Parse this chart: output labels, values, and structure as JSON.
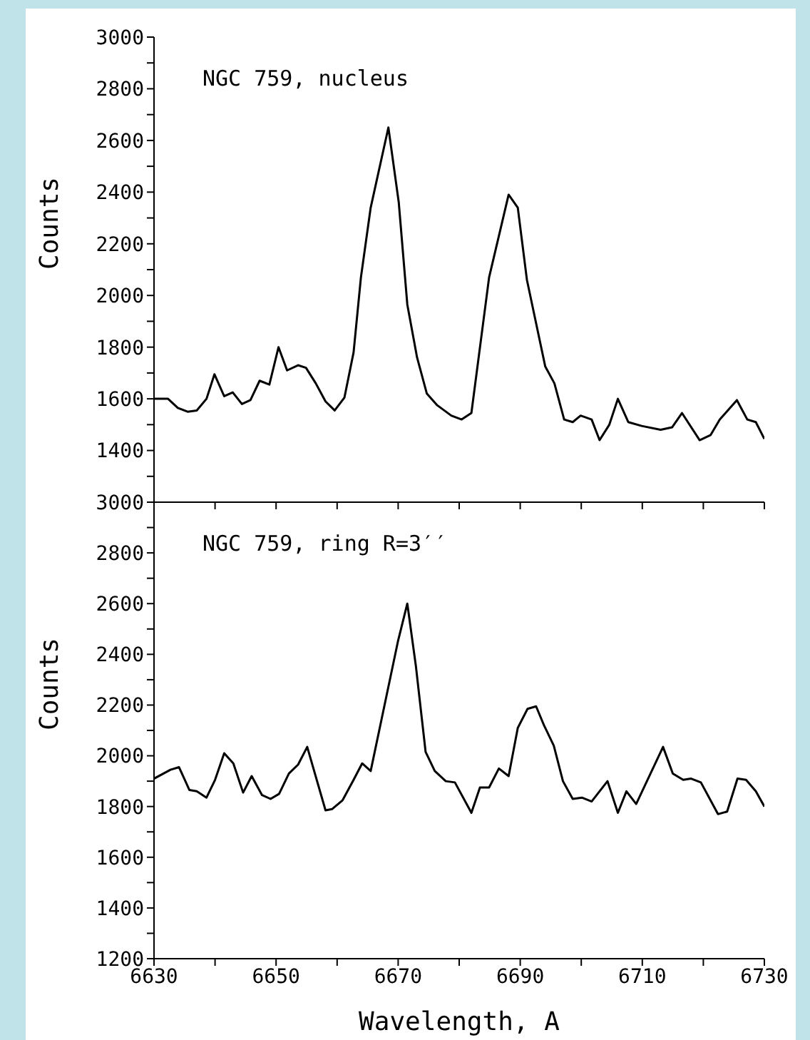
{
  "chart_data": [
    {
      "type": "line",
      "annotations": [
        "NGC 759, nucleus"
      ],
      "ylabel": "Counts",
      "xlim": [
        6630,
        6730
      ],
      "xticks": [
        6630,
        {
          "value": 6640,
          "label": null
        },
        6650,
        {
          "value": 6660,
          "label": null
        },
        6670,
        {
          "value": 6680,
          "label": null
        },
        6690,
        {
          "value": 6700,
          "label": null
        },
        6710,
        {
          "value": 6720,
          "label": null
        },
        6730
      ],
      "ylim": [
        1200,
        3000
      ],
      "yticks": [
        {
          "value": 1200,
          "label": null
        },
        {
          "value": 1300,
          "label": null
        },
        1400,
        {
          "value": 1500,
          "label": null
        },
        1600,
        {
          "value": 1700,
          "label": null
        },
        1800,
        {
          "value": 1900,
          "label": null
        },
        2000,
        {
          "value": 2100,
          "label": null
        },
        2200,
        {
          "value": 2300,
          "label": null
        },
        2400,
        {
          "value": 2500,
          "label": null
        },
        2600,
        {
          "value": 2700,
          "label": null
        },
        2800,
        {
          "value": 2900,
          "label": null
        },
        3000
      ],
      "tick_labels": "y",
      "marker": "none",
      "line_style": "solid",
      "series": [
        {
          "color": "#000000",
          "x": [
            6630,
            6632.3,
            6633.9,
            6635.5,
            6637,
            6638.6,
            6639.9,
            6641.5,
            6642.9,
            6644.4,
            6645.8,
            6647.3,
            6648.9,
            6650.4,
            6651.8,
            6653.6,
            6654.9,
            6656.5,
            6658.1,
            6659.6,
            6661.2,
            6662.7,
            6663.9,
            6665.5,
            6668.4,
            6670.1,
            6671.5,
            6673.1,
            6674.7,
            6676.4,
            6678.7,
            6680.4,
            6682,
            6684.9,
            6688.1,
            6689.6,
            6691.1,
            6694.1,
            6695.6,
            6697.2,
            6698.6,
            6699.9,
            6701.7,
            6703,
            6704.6,
            6706,
            6707.7,
            6709.9,
            6713,
            6714.9,
            6716.5,
            6719.4,
            6721.2,
            6722.7,
            6725.5,
            6727.2,
            6728.6,
            6730
          ],
          "values": [
            1600,
            1600,
            1565,
            1550,
            1555,
            1600,
            1695,
            1610,
            1625,
            1580,
            1595,
            1670,
            1655,
            1800,
            1710,
            1730,
            1720,
            1660,
            1590,
            1555,
            1605,
            1780,
            2070,
            2340,
            2650,
            2360,
            1965,
            1760,
            1620,
            1575,
            1535,
            1520,
            1545,
            2070,
            2390,
            2340,
            2060,
            1725,
            1660,
            1520,
            1510,
            1535,
            1520,
            1440,
            1500,
            1600,
            1510,
            1495,
            1480,
            1490,
            1545,
            1440,
            1460,
            1520,
            1595,
            1520,
            1510,
            1445
          ]
        }
      ]
    },
    {
      "type": "line",
      "annotations": [
        "NGC 759, ring R=3′′"
      ],
      "xlabel": "Wavelength, A",
      "ylabel": "Counts",
      "xlim": [
        6630,
        6730
      ],
      "xticks": [
        6630,
        {
          "value": 6640,
          "label": null
        },
        6650,
        {
          "value": 6660,
          "label": null
        },
        6670,
        {
          "value": 6680,
          "label": null
        },
        6690,
        {
          "value": 6700,
          "label": null
        },
        6710,
        {
          "value": 6720,
          "label": null
        },
        6730
      ],
      "ylim": [
        1200,
        3000
      ],
      "yticks": [
        1200,
        {
          "value": 1300,
          "label": null
        },
        1400,
        {
          "value": 1500,
          "label": null
        },
        1600,
        {
          "value": 1700,
          "label": null
        },
        1800,
        {
          "value": 1900,
          "label": null
        },
        2000,
        {
          "value": 2100,
          "label": null
        },
        2200,
        {
          "value": 2300,
          "label": null
        },
        2400,
        {
          "value": 2500,
          "label": null
        },
        2600,
        {
          "value": 2700,
          "label": null
        },
        2800,
        {
          "value": 2900,
          "label": null
        },
        3000
      ],
      "marker": "none",
      "line_style": "solid",
      "series": [
        {
          "color": "#000000",
          "x": [
            6630,
            6632.7,
            6634.1,
            6635.8,
            6637,
            6638.6,
            6640,
            6641.5,
            6643,
            6644.6,
            6646,
            6647.7,
            6649.1,
            6650.5,
            6652.1,
            6653.6,
            6655.1,
            6658.1,
            6659.2,
            6660.9,
            6662.7,
            6664.1,
            6665.5,
            6670,
            6671.5,
            6672.9,
            6674.5,
            6676,
            6677.8,
            6679.3,
            6682,
            6683.4,
            6684.9,
            6686.5,
            6688.1,
            6689.6,
            6691.2,
            6692.6,
            6693.9,
            6695.5,
            6697,
            6698.6,
            6700.1,
            6701.7,
            6704.3,
            6706,
            6707.4,
            6709,
            6713.4,
            6715,
            6716.7,
            6718,
            6719.6,
            6722.4,
            6723.9,
            6725.6,
            6727,
            6728.6,
            6730
          ],
          "values": [
            1910,
            1945,
            1955,
            1865,
            1860,
            1835,
            1905,
            2010,
            1970,
            1855,
            1920,
            1845,
            1830,
            1850,
            1930,
            1965,
            2035,
            1785,
            1790,
            1825,
            1905,
            1970,
            1940,
            2455,
            2600,
            2355,
            2015,
            1940,
            1900,
            1895,
            1775,
            1875,
            1875,
            1950,
            1920,
            2110,
            2185,
            2195,
            2120,
            2040,
            1900,
            1830,
            1835,
            1820,
            1900,
            1775,
            1860,
            1810,
            2035,
            1930,
            1905,
            1910,
            1895,
            1770,
            1780,
            1910,
            1905,
            1860,
            1800
          ]
        }
      ]
    }
  ]
}
